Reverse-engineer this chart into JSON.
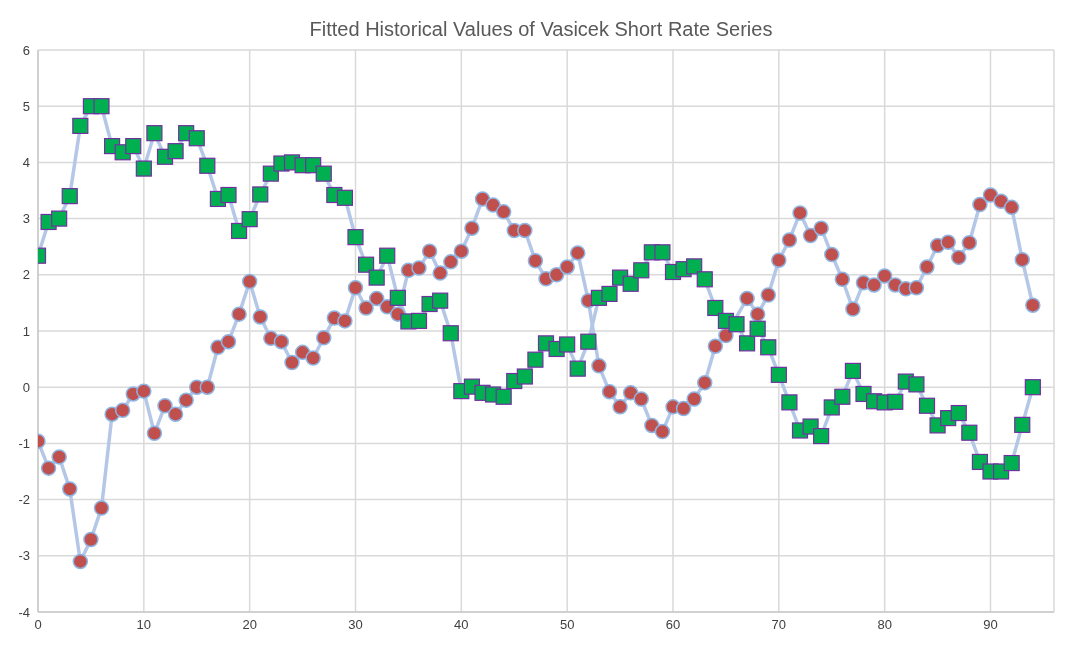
{
  "chart_data": {
    "type": "line",
    "title": "Fitted Historical Values of Vasicek Short Rate Series",
    "x": [
      0,
      1,
      2,
      3,
      4,
      5,
      6,
      7,
      8,
      9,
      10,
      11,
      12,
      13,
      14,
      15,
      16,
      17,
      18,
      19,
      20,
      21,
      22,
      23,
      24,
      25,
      26,
      27,
      28,
      29,
      30,
      31,
      32,
      33,
      34,
      35,
      36,
      37,
      38,
      39,
      40,
      41,
      42,
      43,
      44,
      45,
      46,
      47,
      48,
      49,
      50,
      51,
      52,
      53,
      54,
      55,
      56,
      57,
      58,
      59,
      60,
      61,
      62,
      63,
      64,
      65,
      66,
      67,
      68,
      69,
      70,
      71,
      72,
      73,
      74,
      75,
      76,
      77,
      78,
      79,
      80,
      81,
      82,
      83,
      84,
      85,
      86,
      87,
      88,
      89,
      90,
      91,
      92,
      93,
      94
    ],
    "series": [
      {
        "color": "#c0504d",
        "marker": "circle",
        "values": [
          -0.96,
          -1.44,
          -1.24,
          -1.81,
          -3.1,
          -2.71,
          -2.15,
          -0.48,
          -0.41,
          -0.12,
          -0.07,
          -0.82,
          -0.33,
          -0.48,
          -0.23,
          0,
          0,
          0.71,
          0.81,
          1.3,
          1.88,
          1.25,
          0.87,
          0.81,
          0.44,
          0.62,
          0.52,
          0.88,
          1.23,
          1.18,
          1.77,
          1.41,
          1.58,
          1.43,
          1.3,
          2.08,
          2.12,
          2.42,
          2.03,
          2.23,
          2.42,
          2.83,
          3.35,
          3.24,
          3.12,
          2.79,
          2.79,
          2.25,
          1.93,
          2.0,
          2.14,
          2.39,
          1.54,
          0.38,
          -0.08,
          -0.35,
          -0.1,
          -0.21,
          -0.68,
          -0.79,
          -0.35,
          -0.38,
          -0.21,
          0.08,
          0.73,
          0.92,
          null,
          1.58,
          1.3,
          1.64,
          2.26,
          2.62,
          3.1,
          2.7,
          2.83,
          2.36,
          1.92,
          1.39,
          1.86,
          1.82,
          1.98,
          1.82,
          1.75,
          1.77,
          2.14,
          2.52,
          2.58,
          2.31,
          2.57,
          3.25,
          3.42,
          3.31,
          3.2,
          2.27,
          1.46
        ]
      },
      {
        "color": "#00b050",
        "marker": "square",
        "values": [
          2.34,
          2.94,
          3.0,
          3.4,
          4.65,
          5.0,
          5.0,
          4.29,
          4.18,
          4.29,
          3.89,
          4.52,
          4.1,
          4.2,
          4.52,
          4.43,
          3.94,
          3.35,
          3.42,
          2.78,
          2.99,
          3.43,
          3.8,
          3.98,
          4.0,
          3.95,
          3.95,
          3.8,
          3.42,
          3.37,
          2.67,
          2.18,
          1.95,
          2.34,
          1.59,
          1.17,
          1.18,
          1.48,
          1.54,
          0.96,
          -0.07,
          0.01,
          -0.1,
          -0.13,
          -0.17,
          0.11,
          0.19,
          0.49,
          0.78,
          0.68,
          0.76,
          0.33,
          0.81,
          1.59,
          1.66,
          1.95,
          1.84,
          2.08,
          2.4,
          2.4,
          2.05,
          2.1,
          2.15,
          1.92,
          1.41,
          1.18,
          1.12,
          0.78,
          1.04,
          0.71,
          0.22,
          -0.27,
          -0.77,
          -0.7,
          -0.87,
          -0.36,
          -0.17,
          0.29,
          -0.12,
          -0.25,
          -0.27,
          -0.26,
          0.1,
          0.05,
          -0.33,
          -0.68,
          -0.55,
          -0.46,
          -0.81,
          -1.33,
          -1.5,
          -1.5,
          -1.35,
          -0.67,
          0
        ]
      }
    ],
    "xlim": [
      0,
      96
    ],
    "xticks": [
      0,
      10,
      20,
      30,
      40,
      50,
      60,
      70,
      80,
      90
    ],
    "ylim": [
      -4,
      6
    ],
    "yticks": [
      -4,
      -3,
      -2,
      -1,
      0,
      1,
      2,
      3,
      4,
      5,
      6
    ],
    "grid": true,
    "line_style": "solid"
  }
}
